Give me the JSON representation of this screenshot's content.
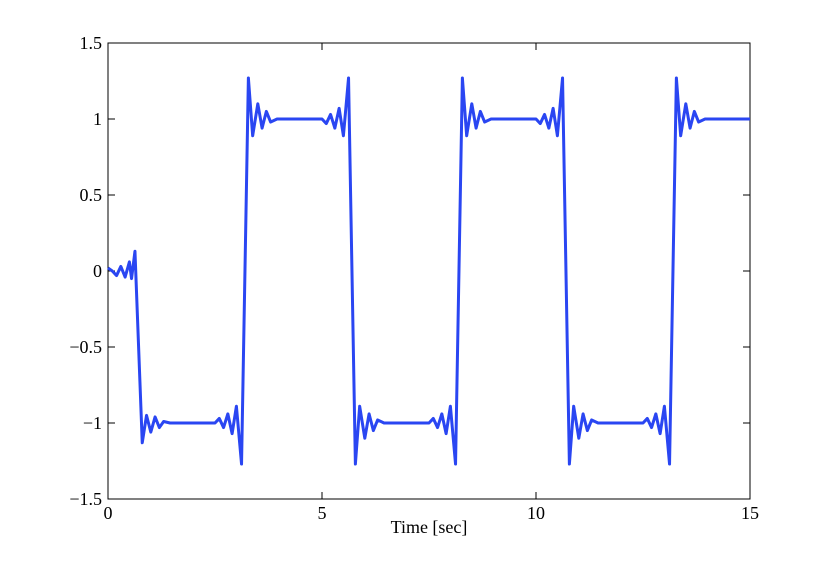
{
  "chart_data": {
    "type": "line",
    "xlabel": "Time [sec]",
    "xlim": [
      0,
      15
    ],
    "xticks": [
      0,
      5,
      10,
      15
    ],
    "ylim": [
      -1.5,
      1.5
    ],
    "yticks": [
      {
        "value": -1.5,
        "label": "−1.5"
      },
      {
        "value": -1,
        "label": "−1"
      },
      {
        "value": -0.5,
        "label": "−0.5"
      },
      0,
      0.5,
      1,
      1.5
    ],
    "series": [
      {
        "color": "#2a46f2",
        "x": [
          0,
          0.1,
          0.2,
          0.3,
          0.4,
          0.5,
          0.55,
          0.63,
          0.8,
          0.9,
          1.0,
          1.1,
          1.2,
          1.3,
          1.45,
          2.5,
          2.6,
          2.7,
          2.8,
          2.9,
          3.0,
          3.12,
          3.28,
          3.38,
          3.5,
          3.6,
          3.7,
          3.8,
          3.95,
          5.0,
          5.1,
          5.2,
          5.3,
          5.4,
          5.5,
          5.62,
          5.78,
          5.88,
          6.0,
          6.1,
          6.2,
          6.3,
          6.45,
          7.5,
          7.6,
          7.7,
          7.8,
          7.9,
          8.0,
          8.12,
          8.28,
          8.38,
          8.5,
          8.6,
          8.7,
          8.8,
          8.95,
          10.0,
          10.1,
          10.2,
          10.3,
          10.4,
          10.5,
          10.62,
          10.78,
          10.88,
          11.0,
          11.1,
          11.2,
          11.3,
          11.45,
          12.5,
          12.6,
          12.7,
          12.8,
          12.9,
          13.0,
          13.12,
          13.28,
          13.38,
          13.5,
          13.6,
          13.7,
          13.8,
          13.95,
          15
        ],
        "values": [
          0.02,
          0.0,
          -0.03,
          0.03,
          -0.04,
          0.06,
          -0.05,
          0.13,
          -1.13,
          -0.95,
          -1.06,
          -0.96,
          -1.03,
          -0.99,
          -1,
          -1,
          -0.97,
          -1.03,
          -0.94,
          -1.07,
          -0.89,
          -1.27,
          1.27,
          0.89,
          1.1,
          0.94,
          1.05,
          0.98,
          1,
          1,
          0.97,
          1.03,
          0.94,
          1.07,
          0.89,
          1.27,
          -1.27,
          -0.89,
          -1.1,
          -0.94,
          -1.05,
          -0.98,
          -1,
          -1,
          -0.97,
          -1.03,
          -0.94,
          -1.07,
          -0.89,
          -1.27,
          1.27,
          0.89,
          1.1,
          0.94,
          1.05,
          0.98,
          1,
          1,
          0.97,
          1.03,
          0.94,
          1.07,
          0.89,
          1.27,
          -1.27,
          -0.89,
          -1.1,
          -0.94,
          -1.05,
          -0.98,
          -1,
          -1,
          -0.97,
          -1.03,
          -0.94,
          -1.07,
          -0.89,
          -1.27,
          1.27,
          0.89,
          1.1,
          0.94,
          1.05,
          0.98,
          1,
          1
        ]
      }
    ]
  }
}
